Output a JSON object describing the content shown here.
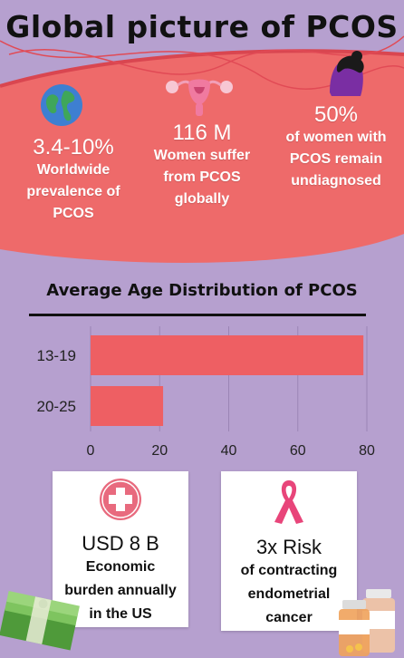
{
  "title": "Global picture of PCOS",
  "stats": [
    {
      "big": "3.4-10%",
      "small": [
        "Worldwide",
        "prevalence of",
        "PCOS"
      ],
      "icon": "globe-icon"
    },
    {
      "big": "116 M",
      "small": [
        "Women suffer",
        "from PCOS",
        "globally"
      ],
      "icon": "uterus-icon"
    },
    {
      "big": "50%",
      "small": [
        "of women with",
        "PCOS remain",
        "undiagnosed"
      ],
      "icon": "woman-head-icon"
    }
  ],
  "cards": [
    {
      "big": "USD 8 B",
      "small": [
        "Economic",
        "burden annually",
        "in the US"
      ],
      "icon": "medical-cross-icon"
    },
    {
      "big": "3x Risk",
      "small": [
        "of contracting",
        "endometrial",
        "cancer"
      ],
      "icon": "cancer-ribbon-icon"
    }
  ],
  "colors": {
    "background": "#b6a0cf",
    "band": "#ee6a6a",
    "accent": "#e45a62",
    "bar": "#ee5f63",
    "ribbon": "#e8457a"
  },
  "chart_data": {
    "type": "bar",
    "orientation": "horizontal",
    "title": "Average Age Distribution of PCOS",
    "categories": [
      "13-19",
      "20-25"
    ],
    "values": [
      79,
      21
    ],
    "xlim": [
      0,
      80
    ],
    "xticks": [
      "0",
      "20",
      "40",
      "60",
      "80"
    ],
    "grid": true
  }
}
